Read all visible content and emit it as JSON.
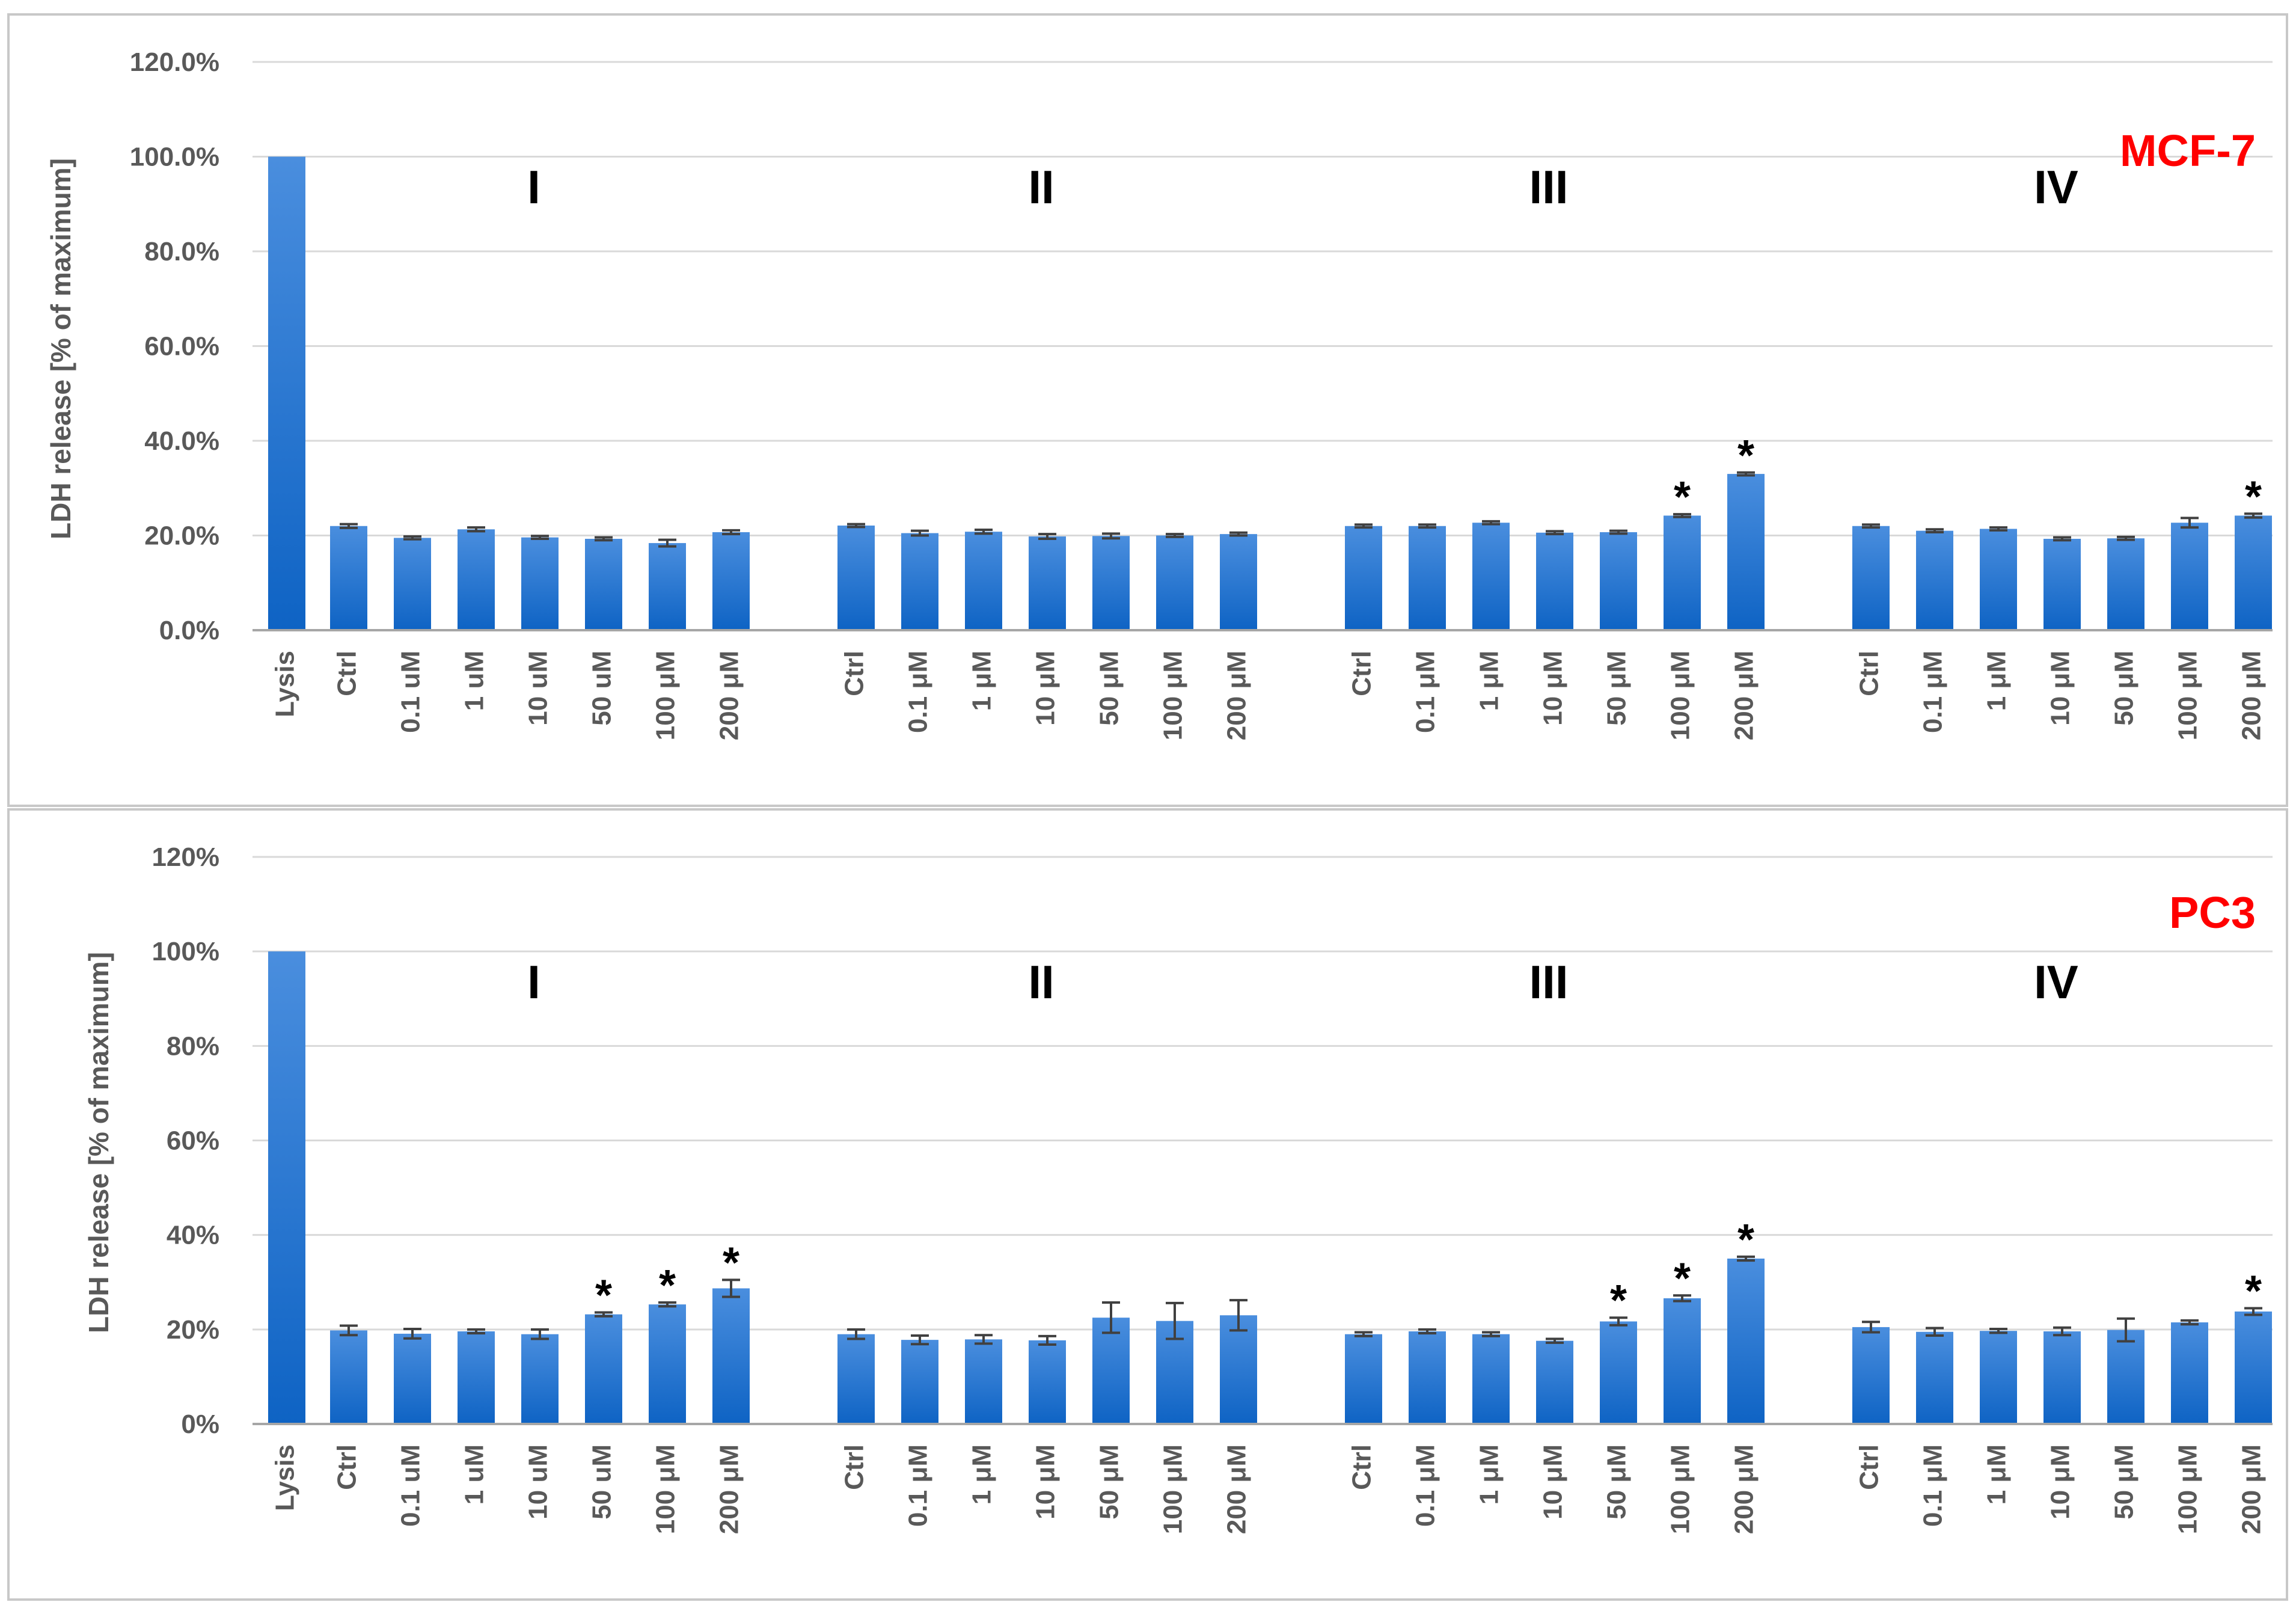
{
  "colors": {
    "bar_top": "#4a8ede",
    "bar_bottom": "#0e63c4",
    "grid": "#d9d9d9",
    "axis": "#595959",
    "error_bar": "#404040",
    "panel_label": "#ff0000",
    "panel_border": "#c8c8c8"
  },
  "chart_data": [
    {
      "type": "bar",
      "panel_label": "MCF-7",
      "ylabel": "LDH release [% of maximum]",
      "ylim": [
        0,
        120
      ],
      "yticks": [
        "0.0%",
        "20.0%",
        "40.0%",
        "60.0%",
        "80.0%",
        "100.0%",
        "120.0%"
      ],
      "grid": true,
      "lysis": {
        "category": "Lysis",
        "value": 100
      },
      "groups": [
        {
          "label": "I",
          "categories": [
            "Ctrl",
            "0.1 uM",
            "1 uM",
            "10 uM",
            "50 uM",
            "100 μM",
            "200 μM"
          ],
          "values": [
            22.0,
            19.5,
            21.3,
            19.6,
            19.3,
            18.4,
            20.7
          ],
          "errors": [
            0.4,
            0.3,
            0.4,
            0.3,
            0.3,
            0.7,
            0.4
          ],
          "significant": [
            false,
            false,
            false,
            false,
            false,
            false,
            false
          ]
        },
        {
          "label": "II",
          "categories": [
            "Ctrl",
            "0.1 μM",
            "1 μM",
            "10 μM",
            "50 μM",
            "100 μM",
            "200 μM"
          ],
          "values": [
            22.1,
            20.5,
            20.8,
            19.8,
            19.9,
            20.0,
            20.3
          ],
          "errors": [
            0.3,
            0.5,
            0.4,
            0.5,
            0.5,
            0.3,
            0.3
          ],
          "significant": [
            false,
            false,
            false,
            false,
            false,
            false,
            false
          ]
        },
        {
          "label": "III",
          "categories": [
            "Ctrl",
            "0.1 μM",
            "1 μM",
            "10 μM",
            "50 μM",
            "100 μM",
            "200 μM"
          ],
          "values": [
            22.0,
            22.0,
            22.7,
            20.6,
            20.7,
            24.2,
            33.0
          ],
          "errors": [
            0.3,
            0.3,
            0.3,
            0.3,
            0.3,
            0.3,
            0.3
          ],
          "significant": [
            false,
            false,
            false,
            false,
            false,
            true,
            true
          ]
        },
        {
          "label": "IV",
          "categories": [
            "Ctrl",
            "0.1 μM",
            "1 μM",
            "10 μM",
            "50 μM",
            "100 μM",
            "200 μM"
          ],
          "values": [
            22.0,
            21.0,
            21.4,
            19.3,
            19.4,
            22.7,
            24.2
          ],
          "errors": [
            0.3,
            0.3,
            0.3,
            0.3,
            0.3,
            1.0,
            0.4
          ],
          "significant": [
            false,
            false,
            false,
            false,
            false,
            false,
            true
          ]
        }
      ]
    },
    {
      "type": "bar",
      "panel_label": "PC3",
      "ylabel": "LDH release [% of maximum]",
      "ylim": [
        0,
        120
      ],
      "yticks": [
        "0%",
        "20%",
        "40%",
        "60%",
        "80%",
        "100%",
        "120%"
      ],
      "grid": true,
      "lysis": {
        "category": "Lysis",
        "value": 100
      },
      "groups": [
        {
          "label": "I",
          "categories": [
            "Ctrl",
            "0.1 uM",
            "1 uM",
            "10 uM",
            "50 uM",
            "100 μM",
            "200 μM"
          ],
          "values": [
            19.8,
            19.1,
            19.6,
            19.0,
            23.2,
            25.3,
            28.7
          ],
          "errors": [
            1.0,
            1.0,
            0.4,
            1.0,
            0.4,
            0.4,
            1.8
          ],
          "significant": [
            false,
            false,
            false,
            false,
            true,
            true,
            true
          ]
        },
        {
          "label": "II",
          "categories": [
            "Ctrl",
            "0.1 μM",
            "1 μM",
            "10 μM",
            "50 μM",
            "100 μM",
            "200 μM"
          ],
          "values": [
            19.0,
            17.8,
            17.9,
            17.7,
            22.5,
            21.8,
            23.0
          ],
          "errors": [
            1.0,
            0.9,
            0.9,
            0.9,
            3.2,
            3.8,
            3.2
          ],
          "significant": [
            false,
            false,
            false,
            false,
            false,
            false,
            false
          ]
        },
        {
          "label": "III",
          "categories": [
            "Ctrl",
            "0.1 μM",
            "1 μM",
            "10 μM",
            "50 μM",
            "100 μM",
            "200 μM"
          ],
          "values": [
            19.0,
            19.6,
            19.0,
            17.6,
            21.7,
            26.6,
            35.0
          ],
          "errors": [
            0.4,
            0.4,
            0.4,
            0.4,
            0.8,
            0.6,
            0.4
          ],
          "significant": [
            false,
            false,
            false,
            false,
            true,
            true,
            true
          ]
        },
        {
          "label": "IV",
          "categories": [
            "Ctrl",
            "0.1 μM",
            "1 μM",
            "10 μM",
            "50 μM",
            "100 μM",
            "200 μM"
          ],
          "values": [
            20.5,
            19.5,
            19.7,
            19.6,
            19.9,
            21.5,
            23.8
          ],
          "errors": [
            1.1,
            0.8,
            0.4,
            0.8,
            2.4,
            0.4,
            0.7
          ],
          "significant": [
            false,
            false,
            false,
            false,
            false,
            false,
            true
          ]
        }
      ]
    }
  ]
}
